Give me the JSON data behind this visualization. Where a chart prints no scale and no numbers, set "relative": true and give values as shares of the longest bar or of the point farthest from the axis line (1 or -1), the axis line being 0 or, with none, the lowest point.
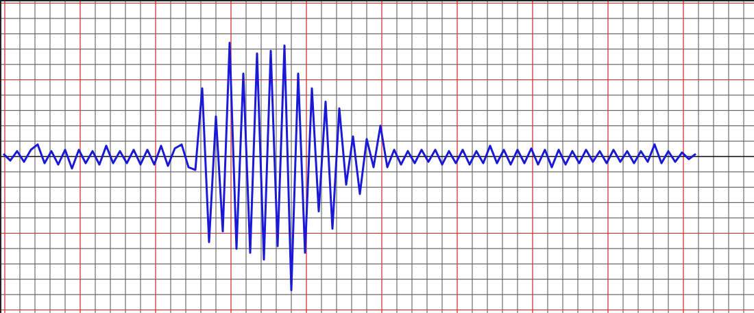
{
  "chart_data": {
    "type": "line",
    "relative": true,
    "grid": true,
    "marker": "none",
    "line_style": "solid",
    "categories": [
      null,
      null,
      null,
      null,
      null,
      null,
      null,
      null,
      null,
      null,
      null,
      null,
      null,
      null,
      null,
      null,
      null,
      null,
      null,
      null,
      null,
      null,
      null,
      null,
      null,
      null,
      null,
      null,
      null,
      null,
      null,
      null,
      null,
      null,
      null,
      null,
      null,
      null,
      null,
      null,
      null,
      null,
      null,
      null,
      null,
      null,
      null,
      null,
      null,
      null,
      null,
      null,
      null,
      null,
      null,
      null,
      null,
      null,
      null,
      null,
      null,
      null,
      null,
      null,
      null,
      null,
      null,
      null,
      null,
      null,
      null,
      null,
      null,
      null,
      null,
      null,
      null,
      null,
      null,
      null,
      null,
      null,
      null,
      null,
      null,
      null,
      null,
      null,
      null,
      null,
      null,
      null,
      null,
      null,
      null,
      null,
      null,
      null,
      null,
      null,
      null,
      null,
      null,
      null,
      null,
      null,
      null,
      null,
      null,
      null
    ],
    "series": [
      {
        "color": "#1a1ad6",
        "values": [
          0.02,
          -0.03,
          0.04,
          -0.04,
          0.05,
          0.09,
          -0.05,
          0.04,
          -0.06,
          0.05,
          -0.09,
          0.05,
          -0.05,
          0.04,
          -0.06,
          0.08,
          -0.05,
          0.04,
          -0.05,
          0.05,
          -0.06,
          0.05,
          -0.06,
          0.08,
          -0.07,
          0.06,
          0.09,
          -0.08,
          -0.1,
          0.51,
          -0.64,
          0.3,
          -0.56,
          0.85,
          -0.69,
          0.62,
          -0.72,
          0.77,
          -0.77,
          0.79,
          -0.67,
          0.83,
          -1.0,
          0.62,
          -0.72,
          0.51,
          -0.41,
          0.41,
          -0.54,
          0.36,
          -0.21,
          0.15,
          -0.28,
          0.13,
          -0.08,
          0.23,
          -0.08,
          0.05,
          -0.06,
          0.04,
          -0.05,
          0.05,
          -0.04,
          0.05,
          -0.06,
          0.04,
          -0.05,
          0.05,
          -0.06,
          0.04,
          -0.05,
          0.08,
          -0.05,
          0.05,
          -0.06,
          0.05,
          -0.05,
          0.06,
          -0.06,
          0.05,
          -0.08,
          0.05,
          -0.06,
          0.04,
          -0.05,
          0.05,
          -0.04,
          0.04,
          -0.05,
          0.05,
          -0.04,
          0.04,
          -0.05,
          0.04,
          -0.04,
          0.09,
          -0.05,
          0.04,
          -0.04,
          0.03,
          -0.02,
          0.02,
          null,
          null,
          null,
          null,
          null,
          null,
          null,
          null
        ]
      }
    ],
    "ref_lines": [
      {
        "axis": "y",
        "value": 0,
        "color": "#000000"
      }
    ]
  }
}
